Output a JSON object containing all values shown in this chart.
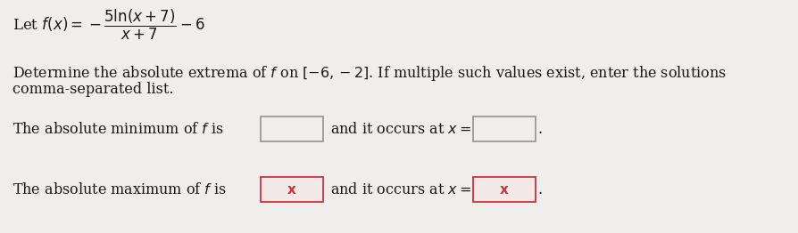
{
  "bg_color": "#f0eeec",
  "text_color": "#1a1a1a",
  "box_bg_empty": "#f0eeec",
  "box_bg_error": "#f5e8e8",
  "box_border_empty": "#999999",
  "box_border_error": "#cc3333",
  "error_x_color": "#cc3333",
  "font_size_formula": 12,
  "font_size_body": 11.5,
  "body_line1": "Determine the absolute extrema of $f$ on $[-6,-2]$. If multiple such values exist, enter the solutions",
  "body_line2": "comma-separated list.",
  "min_text": "The absolute minimum of $f$ is",
  "min_and": "and it occurs at $x =$",
  "max_text": "The absolute maximum of $f$ is",
  "max_and": "and it occurs at $x =$",
  "max_label1": "x",
  "max_label2": "x"
}
